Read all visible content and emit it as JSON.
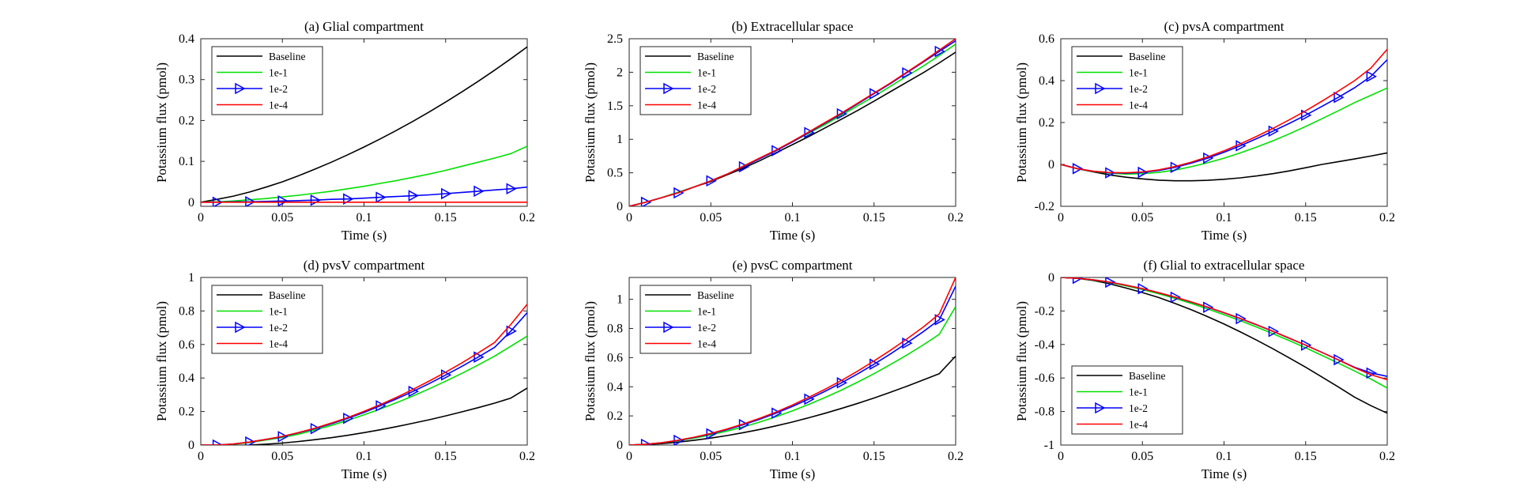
{
  "figure": {
    "colors": {
      "Baseline": "#000000",
      "1e-1": "#00e000",
      "1e-2": "#0000ff",
      "1e-4": "#ff0000"
    },
    "x_axis_label": "Time (s)",
    "y_axis_label": "Potassium flux (pmol)"
  },
  "chart_data": [
    {
      "type": "line",
      "title": "(a) Glial compartment",
      "xlabel": "Time (s)",
      "ylabel": "Potassium flux (pmol)",
      "xlim": [
        0,
        0.2
      ],
      "ylim": [
        -0.01,
        0.4
      ],
      "xticks": [
        0,
        0.05,
        0.1,
        0.15,
        0.2
      ],
      "xtick_labels": [
        "0",
        "0.05",
        "0.1",
        "0.15",
        "0.2"
      ],
      "yticks": [
        0,
        0.1,
        0.2,
        0.3,
        0.4
      ],
      "ytick_labels": [
        "0",
        "0.1",
        "0.2",
        "0.3",
        "0.4"
      ],
      "legend_position": "top-left",
      "x": [
        0,
        0.01,
        0.02,
        0.03,
        0.04,
        0.05,
        0.06,
        0.07,
        0.08,
        0.09,
        0.1,
        0.11,
        0.12,
        0.13,
        0.14,
        0.15,
        0.16,
        0.17,
        0.18,
        0.19,
        0.2
      ],
      "series": [
        {
          "name": "Baseline",
          "values": [
            0.0,
            0.007,
            0.015,
            0.025,
            0.037,
            0.05,
            0.065,
            0.081,
            0.098,
            0.116,
            0.135,
            0.155,
            0.176,
            0.198,
            0.221,
            0.245,
            0.27,
            0.296,
            0.323,
            0.351,
            0.38
          ]
        },
        {
          "name": "1e-1",
          "values": [
            0.0,
            0.001,
            0.003,
            0.006,
            0.009,
            0.013,
            0.017,
            0.022,
            0.027,
            0.033,
            0.039,
            0.046,
            0.053,
            0.061,
            0.069,
            0.078,
            0.088,
            0.098,
            0.108,
            0.119,
            0.137
          ]
        },
        {
          "name": "1e-2",
          "values": [
            0.0,
            0.0,
            0.001,
            0.001,
            0.002,
            0.003,
            0.004,
            0.005,
            0.007,
            0.008,
            0.01,
            0.012,
            0.014,
            0.016,
            0.018,
            0.021,
            0.024,
            0.027,
            0.03,
            0.033,
            0.037
          ],
          "markers": true
        },
        {
          "name": "1e-4",
          "values": [
            0.0,
            0.0,
            0.0,
            0.0,
            0.0,
            0.0,
            0.0,
            0.0,
            0.0,
            0.0,
            0.0,
            0.0,
            0.0,
            0.0,
            0.0,
            0.0,
            0.0,
            0.0,
            0.0,
            0.0,
            0.0
          ]
        }
      ]
    },
    {
      "type": "line",
      "title": "(b) Extracellular space",
      "xlabel": "Time (s)",
      "ylabel": "Potassium flux (pmol)",
      "xlim": [
        0,
        0.2
      ],
      "ylim": [
        0,
        2.5
      ],
      "xticks": [
        0,
        0.05,
        0.1,
        0.15,
        0.2
      ],
      "xtick_labels": [
        "0",
        "0.05",
        "0.1",
        "0.15",
        "0.2"
      ],
      "yticks": [
        0,
        0.5,
        1,
        1.5,
        2,
        2.5
      ],
      "ytick_labels": [
        "0",
        "0.5",
        "1",
        "1.5",
        "2",
        "2.5"
      ],
      "legend_position": "top-left",
      "x": [
        0,
        0.01,
        0.02,
        0.03,
        0.04,
        0.05,
        0.06,
        0.07,
        0.08,
        0.09,
        0.1,
        0.11,
        0.12,
        0.13,
        0.14,
        0.15,
        0.16,
        0.17,
        0.18,
        0.19,
        0.2
      ],
      "series": [
        {
          "name": "Baseline",
          "values": [
            0.0,
            0.06,
            0.13,
            0.21,
            0.29,
            0.37,
            0.47,
            0.57,
            0.68,
            0.8,
            0.92,
            1.04,
            1.17,
            1.3,
            1.43,
            1.57,
            1.71,
            1.85,
            1.99,
            2.14,
            2.3
          ]
        },
        {
          "name": "1e-1",
          "values": [
            0.0,
            0.06,
            0.13,
            0.21,
            0.29,
            0.38,
            0.48,
            0.59,
            0.71,
            0.83,
            0.96,
            1.09,
            1.22,
            1.36,
            1.5,
            1.64,
            1.79,
            1.94,
            2.09,
            2.25,
            2.42
          ]
        },
        {
          "name": "1e-2",
          "values": [
            0.0,
            0.06,
            0.13,
            0.2,
            0.29,
            0.38,
            0.48,
            0.59,
            0.71,
            0.83,
            0.96,
            1.1,
            1.24,
            1.38,
            1.53,
            1.68,
            1.83,
            1.99,
            2.15,
            2.31,
            2.47
          ],
          "markers": true
        },
        {
          "name": "1e-4",
          "values": [
            0.0,
            0.06,
            0.13,
            0.2,
            0.29,
            0.38,
            0.48,
            0.6,
            0.72,
            0.84,
            0.97,
            1.11,
            1.25,
            1.39,
            1.54,
            1.69,
            1.84,
            2.0,
            2.16,
            2.33,
            2.5
          ]
        }
      ]
    },
    {
      "type": "line",
      "title": "(c) pvsA compartment",
      "xlabel": "Time (s)",
      "ylabel": "Potassium flux (pmol)",
      "xlim": [
        0,
        0.2
      ],
      "ylim": [
        -0.2,
        0.6
      ],
      "xticks": [
        0,
        0.05,
        0.1,
        0.15,
        0.2
      ],
      "xtick_labels": [
        "0",
        "0.05",
        "0.1",
        "0.15",
        "0.2"
      ],
      "yticks": [
        -0.2,
        0,
        0.2,
        0.4,
        0.6
      ],
      "ytick_labels": [
        "-0.2",
        "0",
        "0.2",
        "0.4",
        "0.6"
      ],
      "legend_position": "top-left",
      "x": [
        0,
        0.01,
        0.02,
        0.03,
        0.04,
        0.05,
        0.06,
        0.07,
        0.08,
        0.09,
        0.1,
        0.11,
        0.12,
        0.13,
        0.14,
        0.15,
        0.16,
        0.17,
        0.18,
        0.19,
        0.2
      ],
      "series": [
        {
          "name": "Baseline",
          "values": [
            0.0,
            -0.02,
            -0.036,
            -0.05,
            -0.061,
            -0.069,
            -0.075,
            -0.078,
            -0.078,
            -0.076,
            -0.071,
            -0.064,
            -0.055,
            -0.044,
            -0.031,
            -0.016,
            0.0,
            0.013,
            0.026,
            0.04,
            0.055
          ]
        },
        {
          "name": "1e-1",
          "values": [
            0.0,
            -0.02,
            -0.034,
            -0.042,
            -0.046,
            -0.044,
            -0.038,
            -0.027,
            -0.011,
            0.008,
            0.03,
            0.055,
            0.083,
            0.113,
            0.146,
            0.181,
            0.218,
            0.256,
            0.295,
            0.33,
            0.365
          ]
        },
        {
          "name": "1e-2",
          "values": [
            0.0,
            -0.02,
            -0.033,
            -0.04,
            -0.042,
            -0.038,
            -0.029,
            -0.014,
            0.006,
            0.03,
            0.058,
            0.089,
            0.123,
            0.159,
            0.196,
            0.235,
            0.277,
            0.32,
            0.366,
            0.42,
            0.5
          ],
          "markers": true
        },
        {
          "name": "1e-4",
          "values": [
            0.0,
            -0.02,
            -0.033,
            -0.039,
            -0.04,
            -0.036,
            -0.026,
            -0.01,
            0.011,
            0.036,
            0.065,
            0.098,
            0.134,
            0.172,
            0.213,
            0.256,
            0.302,
            0.35,
            0.4,
            0.46,
            0.55
          ]
        }
      ]
    },
    {
      "type": "line",
      "title": "(d) pvsV compartment",
      "xlabel": "Time (s)",
      "ylabel": "Potassium flux (pmol)",
      "xlim": [
        0,
        0.2
      ],
      "ylim": [
        0,
        1
      ],
      "xticks": [
        0,
        0.05,
        0.1,
        0.15,
        0.2
      ],
      "xtick_labels": [
        "0",
        "0.05",
        "0.1",
        "0.15",
        "0.2"
      ],
      "yticks": [
        0,
        0.2,
        0.4,
        0.6,
        0.8,
        1
      ],
      "ytick_labels": [
        "0",
        "0.2",
        "0.4",
        "0.6",
        "0.8",
        "1"
      ],
      "legend_position": "top-left",
      "x": [
        0,
        0.01,
        0.02,
        0.03,
        0.04,
        0.05,
        0.06,
        0.07,
        0.08,
        0.09,
        0.1,
        0.11,
        0.12,
        0.13,
        0.14,
        0.15,
        0.16,
        0.17,
        0.18,
        0.19,
        0.2
      ],
      "series": [
        {
          "name": "Baseline",
          "values": [
            0.0,
            -0.002,
            -0.003,
            0.0,
            0.005,
            0.012,
            0.021,
            0.032,
            0.044,
            0.058,
            0.074,
            0.091,
            0.11,
            0.13,
            0.151,
            0.174,
            0.198,
            0.223,
            0.25,
            0.28,
            0.34
          ]
        },
        {
          "name": "1e-1",
          "values": [
            0.0,
            0.0,
            0.005,
            0.015,
            0.03,
            0.045,
            0.065,
            0.09,
            0.117,
            0.147,
            0.18,
            0.215,
            0.253,
            0.293,
            0.336,
            0.381,
            0.428,
            0.478,
            0.53,
            0.59,
            0.65
          ]
        },
        {
          "name": "1e-2",
          "values": [
            0.0,
            0.0,
            0.006,
            0.018,
            0.034,
            0.05,
            0.073,
            0.098,
            0.127,
            0.159,
            0.195,
            0.234,
            0.276,
            0.32,
            0.367,
            0.418,
            0.47,
            0.525,
            0.583,
            0.68,
            0.79
          ],
          "markers": true
        },
        {
          "name": "1e-4",
          "values": [
            0.0,
            0.0,
            0.006,
            0.018,
            0.034,
            0.052,
            0.075,
            0.101,
            0.131,
            0.164,
            0.201,
            0.241,
            0.285,
            0.332,
            0.382,
            0.435,
            0.49,
            0.55,
            0.612,
            0.72,
            0.84
          ]
        }
      ]
    },
    {
      "type": "line",
      "title": "(e) pvsC compartment",
      "xlabel": "Time (s)",
      "ylabel": "Potassium flux (pmol)",
      "xlim": [
        0,
        0.2
      ],
      "ylim": [
        0,
        1.15
      ],
      "xticks": [
        0,
        0.05,
        0.1,
        0.15,
        0.2
      ],
      "xtick_labels": [
        "0",
        "0.05",
        "0.1",
        "0.15",
        "0.2"
      ],
      "yticks": [
        0,
        0.2,
        0.4,
        0.6,
        0.8,
        1
      ],
      "ytick_labels": [
        "0",
        "0.2",
        "0.4",
        "0.6",
        "0.8",
        "1"
      ],
      "legend_position": "top-left",
      "x": [
        0,
        0.01,
        0.02,
        0.03,
        0.04,
        0.05,
        0.06,
        0.07,
        0.08,
        0.09,
        0.1,
        0.11,
        0.12,
        0.13,
        0.14,
        0.15,
        0.16,
        0.17,
        0.18,
        0.19,
        0.2
      ],
      "series": [
        {
          "name": "Baseline",
          "values": [
            0.0,
            0.004,
            0.01,
            0.02,
            0.033,
            0.048,
            0.065,
            0.085,
            0.107,
            0.132,
            0.158,
            0.187,
            0.218,
            0.251,
            0.286,
            0.323,
            0.362,
            0.403,
            0.446,
            0.49,
            0.61
          ]
        },
        {
          "name": "1e-1",
          "values": [
            0.0,
            0.005,
            0.015,
            0.03,
            0.048,
            0.07,
            0.096,
            0.125,
            0.158,
            0.195,
            0.235,
            0.279,
            0.326,
            0.377,
            0.432,
            0.49,
            0.552,
            0.617,
            0.686,
            0.76,
            0.95
          ]
        },
        {
          "name": "1e-2",
          "values": [
            0.0,
            0.005,
            0.016,
            0.032,
            0.052,
            0.077,
            0.106,
            0.14,
            0.177,
            0.219,
            0.265,
            0.315,
            0.369,
            0.427,
            0.489,
            0.555,
            0.625,
            0.699,
            0.777,
            0.86,
            1.09
          ],
          "markers": true
        },
        {
          "name": "1e-4",
          "values": [
            0.0,
            0.005,
            0.016,
            0.033,
            0.054,
            0.08,
            0.11,
            0.145,
            0.184,
            0.227,
            0.275,
            0.327,
            0.383,
            0.443,
            0.508,
            0.577,
            0.65,
            0.727,
            0.808,
            0.9,
            1.15
          ]
        }
      ]
    },
    {
      "type": "line",
      "title": "(f) Glial to extracellular space",
      "xlabel": "Time (s)",
      "ylabel": "Potassium flux (pmol)",
      "xlim": [
        0,
        0.2
      ],
      "ylim": [
        -1,
        0
      ],
      "xticks": [
        0,
        0.05,
        0.1,
        0.15,
        0.2
      ],
      "xtick_labels": [
        "0",
        "0.05",
        "0.1",
        "0.15",
        "0.2"
      ],
      "yticks": [
        -1,
        -0.8,
        -0.6,
        -0.4,
        -0.2,
        0
      ],
      "ytick_labels": [
        "-1",
        "-0.8",
        "-0.6",
        "-0.4",
        "-0.2",
        "0"
      ],
      "legend_position": "bottom-left",
      "x": [
        0,
        0.01,
        0.02,
        0.03,
        0.04,
        0.05,
        0.06,
        0.07,
        0.08,
        0.09,
        0.1,
        0.11,
        0.12,
        0.13,
        0.14,
        0.15,
        0.16,
        0.17,
        0.18,
        0.19,
        0.2
      ],
      "series": [
        {
          "name": "Baseline",
          "values": [
            0.0,
            -0.005,
            -0.018,
            -0.038,
            -0.063,
            -0.09,
            -0.12,
            -0.155,
            -0.193,
            -0.234,
            -0.278,
            -0.325,
            -0.374,
            -0.426,
            -0.48,
            -0.536,
            -0.594,
            -0.653,
            -0.714,
            -0.765,
            -0.81
          ]
        },
        {
          "name": "1e-1",
          "values": [
            0.0,
            -0.005,
            -0.015,
            -0.03,
            -0.05,
            -0.072,
            -0.097,
            -0.125,
            -0.155,
            -0.188,
            -0.222,
            -0.258,
            -0.296,
            -0.336,
            -0.377,
            -0.42,
            -0.465,
            -0.511,
            -0.558,
            -0.606,
            -0.66
          ]
        },
        {
          "name": "1e-2",
          "values": [
            0.0,
            -0.005,
            -0.014,
            -0.028,
            -0.046,
            -0.067,
            -0.091,
            -0.118,
            -0.147,
            -0.178,
            -0.211,
            -0.246,
            -0.283,
            -0.322,
            -0.363,
            -0.404,
            -0.447,
            -0.491,
            -0.536,
            -0.57,
            -0.59
          ],
          "markers": true
        },
        {
          "name": "1e-4",
          "values": [
            0.0,
            -0.005,
            -0.014,
            -0.028,
            -0.046,
            -0.067,
            -0.091,
            -0.117,
            -0.146,
            -0.177,
            -0.21,
            -0.245,
            -0.282,
            -0.321,
            -0.362,
            -0.404,
            -0.447,
            -0.492,
            -0.538,
            -0.58,
            -0.61
          ]
        }
      ]
    }
  ]
}
